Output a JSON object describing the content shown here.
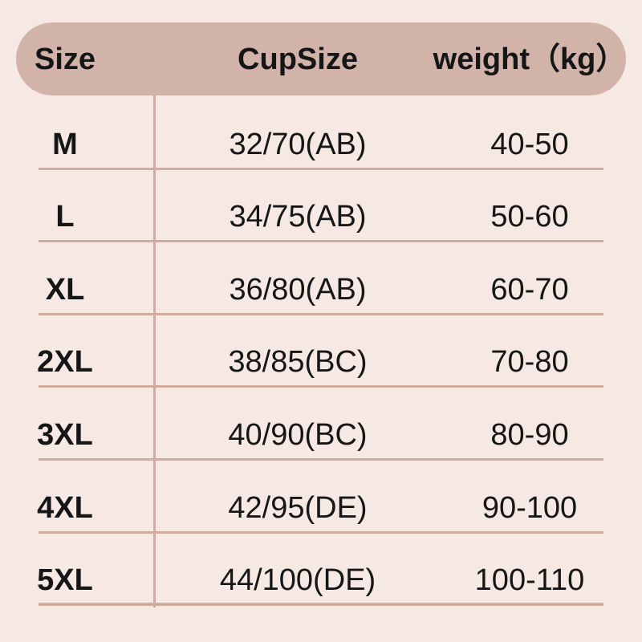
{
  "chart_data": {
    "type": "table",
    "title": "",
    "columns": [
      "Size",
      "CupSize",
      "weight（kg）"
    ],
    "rows": [
      [
        "M",
        "32/70(AB)",
        "40-50"
      ],
      [
        "L",
        "34/75(AB)",
        "50-60"
      ],
      [
        "XL",
        "36/80(AB)",
        "60-70"
      ],
      [
        "2XL",
        "38/85(BC)",
        "70-80"
      ],
      [
        "3XL",
        "40/90(BC)",
        "80-90"
      ],
      [
        "4XL",
        "42/95(DE)",
        "90-100"
      ],
      [
        "5XL",
        "44/100(DE)",
        "100-110"
      ]
    ],
    "layout": {
      "header_style": "rounded-pill",
      "column_divider_after": "Size",
      "grid": "horizontal-row-dividers"
    }
  },
  "colors": {
    "background": "#f6e9e3",
    "header_pill": "#d2b3a9",
    "divider_line": "#d1ab9d",
    "text": "#161616"
  }
}
